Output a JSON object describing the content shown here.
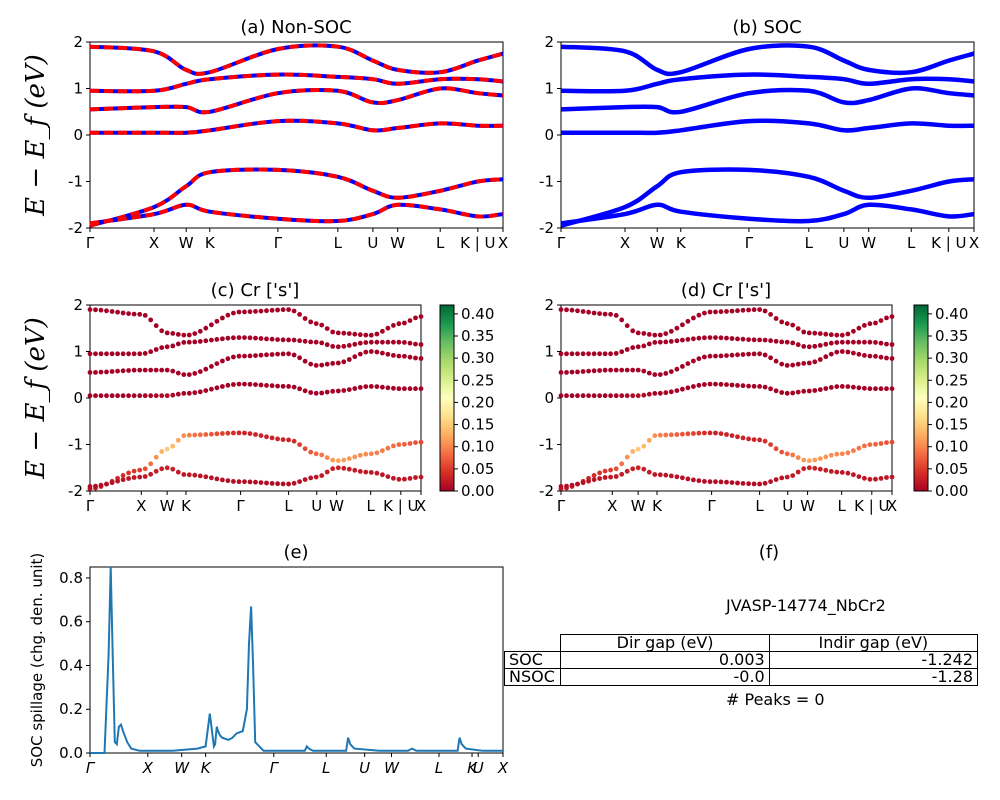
{
  "figure": {
    "panels": {
      "a": {
        "title": "(a) Non-SOC"
      },
      "b": {
        "title": "(b) SOC"
      },
      "c": {
        "title": "(c)  Cr ['s']"
      },
      "d": {
        "title": "(d) Cr ['s']"
      },
      "e": {
        "title": "(e)"
      },
      "f": {
        "title": "(f)"
      }
    },
    "band_ylabel": "E − E_f (eV)",
    "e_ylabel": "SOC spillage (chg. den. unit)",
    "band_xticks_ab": [
      "Γ",
      "X",
      "W",
      "K",
      "Γ",
      "L",
      "U",
      "W",
      "L",
      "K | U",
      "X"
    ],
    "band_xticks_cd": [
      "Γ",
      "X",
      "W",
      "K",
      "Γ",
      "L",
      "U",
      "W",
      "L",
      "K | U",
      "X"
    ],
    "e_xticks": [
      "Γ",
      "X",
      "W",
      "K",
      "Γ",
      "L",
      "U",
      "W",
      "L",
      "K",
      "U",
      "X"
    ],
    "colorbar_ticks": [
      "0.00",
      "0.05",
      "0.10",
      "0.15",
      "0.20",
      "0.25",
      "0.30",
      "0.35",
      "0.40"
    ],
    "colors": {
      "nonsoc_red": "#ff0000",
      "nonsoc_blue": "#0000ff",
      "soc_blue": "#0000ff",
      "spillage": "#1f77b4",
      "cmap_low": "#a50026",
      "cmap_mid": "#ffffbf",
      "cmap_high": "#006837"
    }
  },
  "info": {
    "title": "JVASP-14774_NbCr2",
    "table": {
      "header": [
        "",
        "Dir gap (eV)",
        "Indir gap (eV)"
      ],
      "rows": [
        [
          "SOC",
          "0.003",
          "-1.242"
        ],
        [
          "NSOC",
          "-0.0",
          "-1.28"
        ]
      ]
    },
    "peaks": "# Peaks = 0"
  },
  "chart_data": [
    {
      "type": "line",
      "title": "(a) Non-SOC",
      "ylabel": "E − E_f (eV)",
      "ylim": [
        -2,
        2
      ],
      "yticks": [
        -2,
        -1,
        0,
        1,
        2
      ],
      "xtick_labels": [
        "Γ",
        "X",
        "W",
        "K",
        "Γ",
        "L",
        "U",
        "W",
        "L",
        "K | U",
        "X"
      ],
      "series": [
        {
          "values": [
            -1.95,
            -1.55,
            -1.1,
            -0.8,
            -0.75,
            -0.9,
            -1.2,
            -1.35,
            -1.2,
            -1.0,
            -0.95
          ]
        },
        {
          "values": [
            -1.9,
            -1.7,
            -1.5,
            -1.65,
            -1.8,
            -1.85,
            -1.7,
            -1.5,
            -1.6,
            -1.75,
            -1.7
          ]
        },
        {
          "values": [
            0.05,
            0.05,
            0.05,
            0.1,
            0.3,
            0.25,
            0.1,
            0.15,
            0.25,
            0.2,
            0.2
          ]
        },
        {
          "values": [
            0.55,
            0.6,
            0.6,
            0.5,
            0.9,
            0.95,
            0.7,
            0.75,
            1.0,
            0.9,
            0.85
          ]
        },
        {
          "values": [
            0.95,
            0.95,
            1.1,
            1.2,
            1.3,
            1.25,
            1.2,
            1.1,
            1.2,
            1.2,
            1.15
          ]
        },
        {
          "values": [
            1.9,
            1.8,
            1.4,
            1.35,
            1.85,
            1.9,
            1.6,
            1.4,
            1.35,
            1.6,
            1.75
          ]
        }
      ]
    },
    {
      "type": "line",
      "title": "(b) SOC",
      "ylim": [
        -2,
        2
      ],
      "yticks": [
        -2,
        -1,
        0,
        1,
        2
      ],
      "xtick_labels": [
        "Γ",
        "X",
        "W",
        "K",
        "Γ",
        "L",
        "U",
        "W",
        "L",
        "K | U",
        "X"
      ],
      "series": [
        {
          "values": [
            -1.95,
            -1.55,
            -1.1,
            -0.8,
            -0.75,
            -0.9,
            -1.2,
            -1.35,
            -1.2,
            -1.0,
            -0.95
          ]
        },
        {
          "values": [
            -1.9,
            -1.7,
            -1.5,
            -1.65,
            -1.8,
            -1.85,
            -1.7,
            -1.5,
            -1.6,
            -1.75,
            -1.7
          ]
        },
        {
          "values": [
            0.05,
            0.05,
            0.05,
            0.1,
            0.3,
            0.25,
            0.1,
            0.15,
            0.25,
            0.2,
            0.2
          ]
        },
        {
          "values": [
            0.55,
            0.6,
            0.6,
            0.5,
            0.9,
            0.95,
            0.7,
            0.75,
            1.0,
            0.9,
            0.85
          ]
        },
        {
          "values": [
            0.95,
            0.95,
            1.1,
            1.2,
            1.3,
            1.25,
            1.2,
            1.1,
            1.2,
            1.2,
            1.15
          ]
        },
        {
          "values": [
            1.9,
            1.8,
            1.4,
            1.35,
            1.85,
            1.9,
            1.6,
            1.4,
            1.35,
            1.6,
            1.75
          ]
        }
      ]
    },
    {
      "type": "scatter",
      "title": "(c)  Cr ['s']",
      "ylabel": "E − E_f (eV)",
      "ylim": [
        -2,
        2
      ],
      "yticks": [
        -2,
        -1,
        0,
        1,
        2
      ],
      "colorbar_range": [
        0.0,
        0.42
      ],
      "xtick_labels": [
        "Γ",
        "X",
        "W",
        "K",
        "Γ",
        "L",
        "U",
        "W",
        "L",
        "K | U",
        "X"
      ],
      "series": [
        {
          "values": [
            -1.95,
            -1.55,
            -1.1,
            -0.8,
            -0.75,
            -0.9,
            -1.2,
            -1.35,
            -1.2,
            -1.0,
            -0.95
          ],
          "weight": [
            0.02,
            0.05,
            0.15,
            0.1,
            0.03,
            0.03,
            0.08,
            0.12,
            0.1,
            0.08,
            0.06
          ]
        },
        {
          "values": [
            -1.9,
            -1.7,
            -1.5,
            -1.65,
            -1.8,
            -1.85,
            -1.7,
            -1.5,
            -1.6,
            -1.75,
            -1.7
          ],
          "weight": [
            0.01,
            0.02,
            0.03,
            0.02,
            0.01,
            0.01,
            0.02,
            0.03,
            0.02,
            0.02,
            0.02
          ]
        },
        {
          "values": [
            0.05,
            0.05,
            0.05,
            0.1,
            0.3,
            0.25,
            0.1,
            0.15,
            0.25,
            0.2,
            0.2
          ],
          "weight": [
            0.0,
            0.0,
            0.01,
            0.0,
            0.0,
            0.0,
            0.0,
            0.0,
            0.0,
            0.0,
            0.0
          ]
        },
        {
          "values": [
            0.55,
            0.6,
            0.6,
            0.5,
            0.9,
            0.95,
            0.7,
            0.75,
            1.0,
            0.9,
            0.85
          ],
          "weight": [
            0.0,
            0.0,
            0.0,
            0.0,
            0.0,
            0.0,
            0.0,
            0.0,
            0.0,
            0.0,
            0.0
          ]
        },
        {
          "values": [
            0.95,
            0.95,
            1.1,
            1.2,
            1.3,
            1.25,
            1.2,
            1.1,
            1.2,
            1.2,
            1.15
          ],
          "weight": [
            0.0,
            0.0,
            0.0,
            0.0,
            0.0,
            0.0,
            0.0,
            0.0,
            0.0,
            0.0,
            0.0
          ]
        },
        {
          "values": [
            1.9,
            1.8,
            1.4,
            1.35,
            1.85,
            1.9,
            1.6,
            1.4,
            1.35,
            1.6,
            1.75
          ],
          "weight": [
            0.0,
            0.0,
            0.0,
            0.0,
            0.0,
            0.0,
            0.0,
            0.0,
            0.0,
            0.0,
            0.0
          ]
        }
      ]
    },
    {
      "type": "scatter",
      "title": "(d) Cr ['s']",
      "ylim": [
        -2,
        2
      ],
      "yticks": [
        -2,
        -1,
        0,
        1,
        2
      ],
      "colorbar_range": [
        0.0,
        0.42
      ],
      "xtick_labels": [
        "Γ",
        "X",
        "W",
        "K",
        "Γ",
        "L",
        "U",
        "W",
        "L",
        "K | U",
        "X"
      ],
      "series": [
        {
          "values": [
            -1.95,
            -1.55,
            -1.1,
            -0.8,
            -0.75,
            -0.9,
            -1.2,
            -1.35,
            -1.2,
            -1.0,
            -0.95
          ],
          "weight": [
            0.02,
            0.05,
            0.15,
            0.1,
            0.03,
            0.03,
            0.08,
            0.12,
            0.1,
            0.08,
            0.06
          ]
        },
        {
          "values": [
            -1.9,
            -1.7,
            -1.5,
            -1.65,
            -1.8,
            -1.85,
            -1.7,
            -1.5,
            -1.6,
            -1.75,
            -1.7
          ],
          "weight": [
            0.01,
            0.02,
            0.03,
            0.02,
            0.01,
            0.01,
            0.02,
            0.03,
            0.02,
            0.02,
            0.02
          ]
        },
        {
          "values": [
            0.05,
            0.05,
            0.05,
            0.1,
            0.3,
            0.25,
            0.1,
            0.15,
            0.25,
            0.2,
            0.2
          ],
          "weight": [
            0.0,
            0.0,
            0.01,
            0.0,
            0.0,
            0.0,
            0.0,
            0.0,
            0.0,
            0.0,
            0.0
          ]
        },
        {
          "values": [
            0.55,
            0.6,
            0.6,
            0.5,
            0.9,
            0.95,
            0.7,
            0.75,
            1.0,
            0.9,
            0.85
          ],
          "weight": [
            0.0,
            0.0,
            0.0,
            0.0,
            0.0,
            0.0,
            0.0,
            0.0,
            0.0,
            0.0,
            0.0
          ]
        },
        {
          "values": [
            0.95,
            0.95,
            1.1,
            1.2,
            1.3,
            1.25,
            1.2,
            1.1,
            1.2,
            1.2,
            1.15
          ],
          "weight": [
            0.0,
            0.0,
            0.0,
            0.0,
            0.0,
            0.0,
            0.0,
            0.0,
            0.0,
            0.0,
            0.0
          ]
        },
        {
          "values": [
            1.9,
            1.8,
            1.4,
            1.35,
            1.85,
            1.9,
            1.6,
            1.4,
            1.35,
            1.6,
            1.75
          ],
          "weight": [
            0.0,
            0.0,
            0.0,
            0.0,
            0.0,
            0.0,
            0.0,
            0.0,
            0.0,
            0.0,
            0.0
          ]
        }
      ]
    },
    {
      "type": "line",
      "title": "(e)",
      "ylabel": "SOC spillage (chg. den. unit)",
      "ylim": [
        0,
        0.85
      ],
      "yticks": [
        0.0,
        0.2,
        0.4,
        0.6,
        0.8
      ],
      "xtick_labels": [
        "Γ",
        "X",
        "W",
        "K",
        "Γ",
        "L",
        "U",
        "W",
        "L",
        "K",
        "U",
        "X"
      ],
      "x": [
        0,
        0.035,
        0.045,
        0.05,
        0.055,
        0.06,
        0.065,
        0.07,
        0.075,
        0.08,
        0.09,
        0.1,
        0.12,
        0.14,
        0.2,
        0.26,
        0.28,
        0.29,
        0.3,
        0.303,
        0.307,
        0.31,
        0.315,
        0.32,
        0.335,
        0.345,
        0.355,
        0.37,
        0.38,
        0.385,
        0.39,
        0.395,
        0.4,
        0.42,
        0.46,
        0.5,
        0.52,
        0.525,
        0.53,
        0.54,
        0.6,
        0.62,
        0.625,
        0.63,
        0.64,
        0.7,
        0.77,
        0.78,
        0.79,
        0.85,
        0.89,
        0.895,
        0.9,
        0.91,
        0.95,
        1.0
      ],
      "values": [
        0.0,
        0.0,
        0.45,
        0.85,
        0.45,
        0.05,
        0.04,
        0.12,
        0.13,
        0.1,
        0.05,
        0.02,
        0.01,
        0.01,
        0.01,
        0.02,
        0.03,
        0.18,
        0.03,
        0.04,
        0.12,
        0.1,
        0.08,
        0.07,
        0.06,
        0.07,
        0.09,
        0.1,
        0.2,
        0.5,
        0.67,
        0.4,
        0.05,
        0.01,
        0.01,
        0.01,
        0.01,
        0.03,
        0.02,
        0.01,
        0.01,
        0.01,
        0.07,
        0.04,
        0.02,
        0.01,
        0.01,
        0.02,
        0.01,
        0.01,
        0.01,
        0.07,
        0.04,
        0.02,
        0.01,
        0.01
      ]
    }
  ]
}
